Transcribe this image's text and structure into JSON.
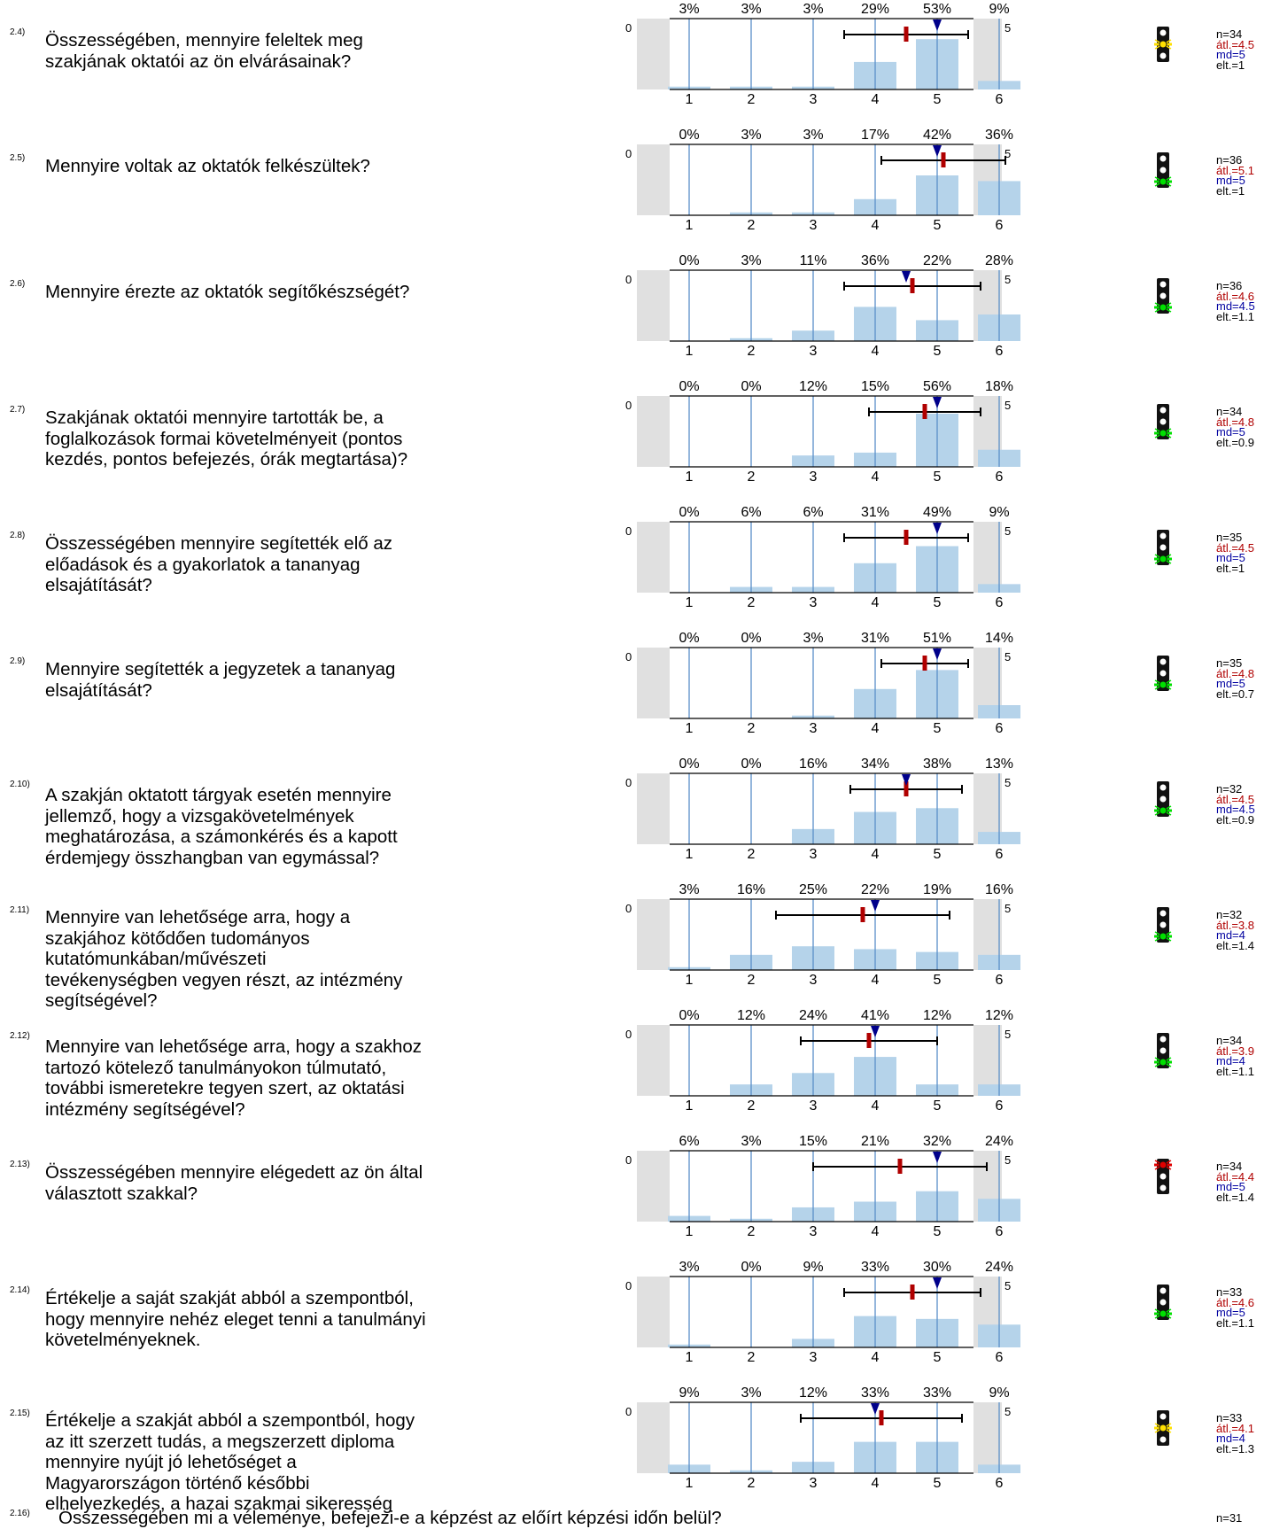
{
  "colors": {
    "bar": "#b5d3ea",
    "vline": "#5b8fc8",
    "mean": "#b00000",
    "median": "#00008b",
    "side": "#e0e0e0",
    "green": "#00e000",
    "yellow": "#ffe000",
    "red": "#e00000"
  },
  "scale_left": "0",
  "scale_right": "5",
  "chart_data": [
    {
      "type": "bar",
      "id": "2.4)",
      "question": "Összességében, mennyire feleltek meg\nszakjának oktatói az ön elvárásainak?",
      "categories": [
        "1",
        "2",
        "3",
        "4",
        "5",
        "6"
      ],
      "percent_labels": [
        "3%",
        "3%",
        "3%",
        "29%",
        "53%",
        "9%"
      ],
      "values": [
        3,
        3,
        3,
        29,
        53,
        9
      ],
      "mean": 4.5,
      "median": 5,
      "sd": 1,
      "ylim": [
        0,
        100
      ],
      "light": "yellow",
      "stats": {
        "n": "n=34",
        "avg": "átl.=4.5",
        "md": "md=5",
        "sd": "elt.=1"
      }
    },
    {
      "type": "bar",
      "id": "2.5)",
      "question": "Mennyire voltak az oktatók felkészültek?",
      "categories": [
        "1",
        "2",
        "3",
        "4",
        "5",
        "6"
      ],
      "percent_labels": [
        "0%",
        "3%",
        "3%",
        "17%",
        "42%",
        "36%"
      ],
      "values": [
        0,
        3,
        3,
        17,
        42,
        36
      ],
      "mean": 5.1,
      "median": 5,
      "sd": 1,
      "ylim": [
        0,
        100
      ],
      "light": "green",
      "stats": {
        "n": "n=36",
        "avg": "átl.=5.1",
        "md": "md=5",
        "sd": "elt.=1"
      }
    },
    {
      "type": "bar",
      "id": "2.6)",
      "question": "Mennyire érezte az oktatók segítőkészségét?",
      "categories": [
        "1",
        "2",
        "3",
        "4",
        "5",
        "6"
      ],
      "percent_labels": [
        "0%",
        "3%",
        "11%",
        "36%",
        "22%",
        "28%"
      ],
      "values": [
        0,
        3,
        11,
        36,
        22,
        28
      ],
      "mean": 4.6,
      "median": 4.5,
      "sd": 1.1,
      "ylim": [
        0,
        100
      ],
      "light": "green",
      "stats": {
        "n": "n=36",
        "avg": "átl.=4.6",
        "md": "md=4.5",
        "sd": "elt.=1.1"
      }
    },
    {
      "type": "bar",
      "id": "2.7)",
      "question": "Szakjának oktatói mennyire tartották be, a\nfoglalkozások formai követelményeit (pontos\nkezdés, pontos befejezés, órák megtartása)?",
      "categories": [
        "1",
        "2",
        "3",
        "4",
        "5",
        "6"
      ],
      "percent_labels": [
        "0%",
        "0%",
        "12%",
        "15%",
        "56%",
        "18%"
      ],
      "values": [
        0,
        0,
        12,
        15,
        56,
        18
      ],
      "mean": 4.8,
      "median": 5,
      "sd": 0.9,
      "ylim": [
        0,
        100
      ],
      "light": "green",
      "stats": {
        "n": "n=34",
        "avg": "átl.=4.8",
        "md": "md=5",
        "sd": "elt.=0.9"
      }
    },
    {
      "type": "bar",
      "id": "2.8)",
      "question": "Összességében mennyire segítették elő az\nelőadások és a gyakorlatok a tananyag\nelsajátítását?",
      "categories": [
        "1",
        "2",
        "3",
        "4",
        "5",
        "6"
      ],
      "percent_labels": [
        "0%",
        "6%",
        "6%",
        "31%",
        "49%",
        "9%"
      ],
      "values": [
        0,
        6,
        6,
        31,
        49,
        9
      ],
      "mean": 4.5,
      "median": 5,
      "sd": 1,
      "ylim": [
        0,
        100
      ],
      "light": "green",
      "stats": {
        "n": "n=35",
        "avg": "átl.=4.5",
        "md": "md=5",
        "sd": "elt.=1"
      }
    },
    {
      "type": "bar",
      "id": "2.9)",
      "question": "Mennyire segítették a jegyzetek a tananyag\nelsajátítását?",
      "categories": [
        "1",
        "2",
        "3",
        "4",
        "5",
        "6"
      ],
      "percent_labels": [
        "0%",
        "0%",
        "3%",
        "31%",
        "51%",
        "14%"
      ],
      "values": [
        0,
        0,
        3,
        31,
        51,
        14
      ],
      "mean": 4.8,
      "median": 5,
      "sd": 0.7,
      "ylim": [
        0,
        100
      ],
      "light": "green",
      "stats": {
        "n": "n=35",
        "avg": "átl.=4.8",
        "md": "md=5",
        "sd": "elt.=0.7"
      }
    },
    {
      "type": "bar",
      "id": "2.10)",
      "question": "A szakján oktatott tárgyak esetén mennyire\njellemző, hogy a vizsgakövetelmények\nmeghatározása, a számonkérés és a kapott\nérdemjegy összhangban van egymással?",
      "categories": [
        "1",
        "2",
        "3",
        "4",
        "5",
        "6"
      ],
      "percent_labels": [
        "0%",
        "0%",
        "16%",
        "34%",
        "38%",
        "13%"
      ],
      "values": [
        0,
        0,
        16,
        34,
        38,
        13
      ],
      "mean": 4.5,
      "median": 4.5,
      "sd": 0.9,
      "ylim": [
        0,
        100
      ],
      "light": "green",
      "stats": {
        "n": "n=32",
        "avg": "átl.=4.5",
        "md": "md=4.5",
        "sd": "elt.=0.9"
      }
    },
    {
      "type": "bar",
      "id": "2.11)",
      "question": "Mennyire van lehetősége arra, hogy a\nszakjához kötődően tudományos\nkutatómunkában/művészeti\ntevékenységben vegyen részt, az intézmény\nsegítségével?",
      "categories": [
        "1",
        "2",
        "3",
        "4",
        "5",
        "6"
      ],
      "percent_labels": [
        "3%",
        "16%",
        "25%",
        "22%",
        "19%",
        "16%"
      ],
      "values": [
        3,
        16,
        25,
        22,
        19,
        16
      ],
      "mean": 3.8,
      "median": 4,
      "sd": 1.4,
      "ylim": [
        0,
        100
      ],
      "light": "green",
      "stats": {
        "n": "n=32",
        "avg": "átl.=3.8",
        "md": "md=4",
        "sd": "elt.=1.4"
      }
    },
    {
      "type": "bar",
      "id": "2.12)",
      "question": "Mennyire van lehetősége arra, hogy a szakhoz\ntartozó kötelező tanulmányokon túlmutató,\ntovábbi ismeretekre tegyen szert, az oktatási\nintézmény segítségével?",
      "categories": [
        "1",
        "2",
        "3",
        "4",
        "5",
        "6"
      ],
      "percent_labels": [
        "0%",
        "12%",
        "24%",
        "41%",
        "12%",
        "12%"
      ],
      "values": [
        0,
        12,
        24,
        41,
        12,
        12
      ],
      "mean": 3.9,
      "median": 4,
      "sd": 1.1,
      "ylim": [
        0,
        100
      ],
      "light": "green",
      "stats": {
        "n": "n=34",
        "avg": "átl.=3.9",
        "md": "md=4",
        "sd": "elt.=1.1"
      }
    },
    {
      "type": "bar",
      "id": "2.13)",
      "question": "Összességében mennyire elégedett az ön által\nválasztott szakkal?",
      "categories": [
        "1",
        "2",
        "3",
        "4",
        "5",
        "6"
      ],
      "percent_labels": [
        "6%",
        "3%",
        "15%",
        "21%",
        "32%",
        "24%"
      ],
      "values": [
        6,
        3,
        15,
        21,
        32,
        24
      ],
      "mean": 4.4,
      "median": 5,
      "sd": 1.4,
      "ylim": [
        0,
        100
      ],
      "light": "red",
      "stats": {
        "n": "n=34",
        "avg": "átl.=4.4",
        "md": "md=5",
        "sd": "elt.=1.4"
      }
    },
    {
      "type": "bar",
      "id": "2.14)",
      "question": "Értékelje a saját szakját abból a szempontból,\nhogy mennyire nehéz eleget tenni a tanulmányi\nkövetelményeknek.",
      "categories": [
        "1",
        "2",
        "3",
        "4",
        "5",
        "6"
      ],
      "percent_labels": [
        "3%",
        "0%",
        "9%",
        "33%",
        "30%",
        "24%"
      ],
      "values": [
        3,
        0,
        9,
        33,
        30,
        24
      ],
      "mean": 4.6,
      "median": 5,
      "sd": 1.1,
      "ylim": [
        0,
        100
      ],
      "light": "green",
      "stats": {
        "n": "n=33",
        "avg": "átl.=4.6",
        "md": "md=5",
        "sd": "elt.=1.1"
      }
    },
    {
      "type": "bar",
      "id": "2.15)",
      "question": "Értékelje a szakját abból a szempontból, hogy\naz itt szerzett tudás, a megszerzett diploma\nmennyire nyújt jó lehetőséget a\nMagyarországon történő későbbi\nelhelyezkedés, a hazai szakmai sikeresség",
      "categories": [
        "1",
        "2",
        "3",
        "4",
        "5",
        "6"
      ],
      "percent_labels": [
        "9%",
        "3%",
        "12%",
        "33%",
        "33%",
        "9%"
      ],
      "values": [
        9,
        3,
        12,
        33,
        33,
        9
      ],
      "mean": 4.1,
      "median": 4,
      "sd": 1.3,
      "ylim": [
        0,
        100
      ],
      "light": "yellow",
      "stats": {
        "n": "n=33",
        "avg": "átl.=4.1",
        "md": "md=4",
        "sd": "elt.=1.3"
      }
    }
  ],
  "last": {
    "id": "2.16)",
    "question": "Összességében mi a véleménye, befejezi-e a képzést az előírt képzési időn belül?",
    "n": "n=31"
  }
}
